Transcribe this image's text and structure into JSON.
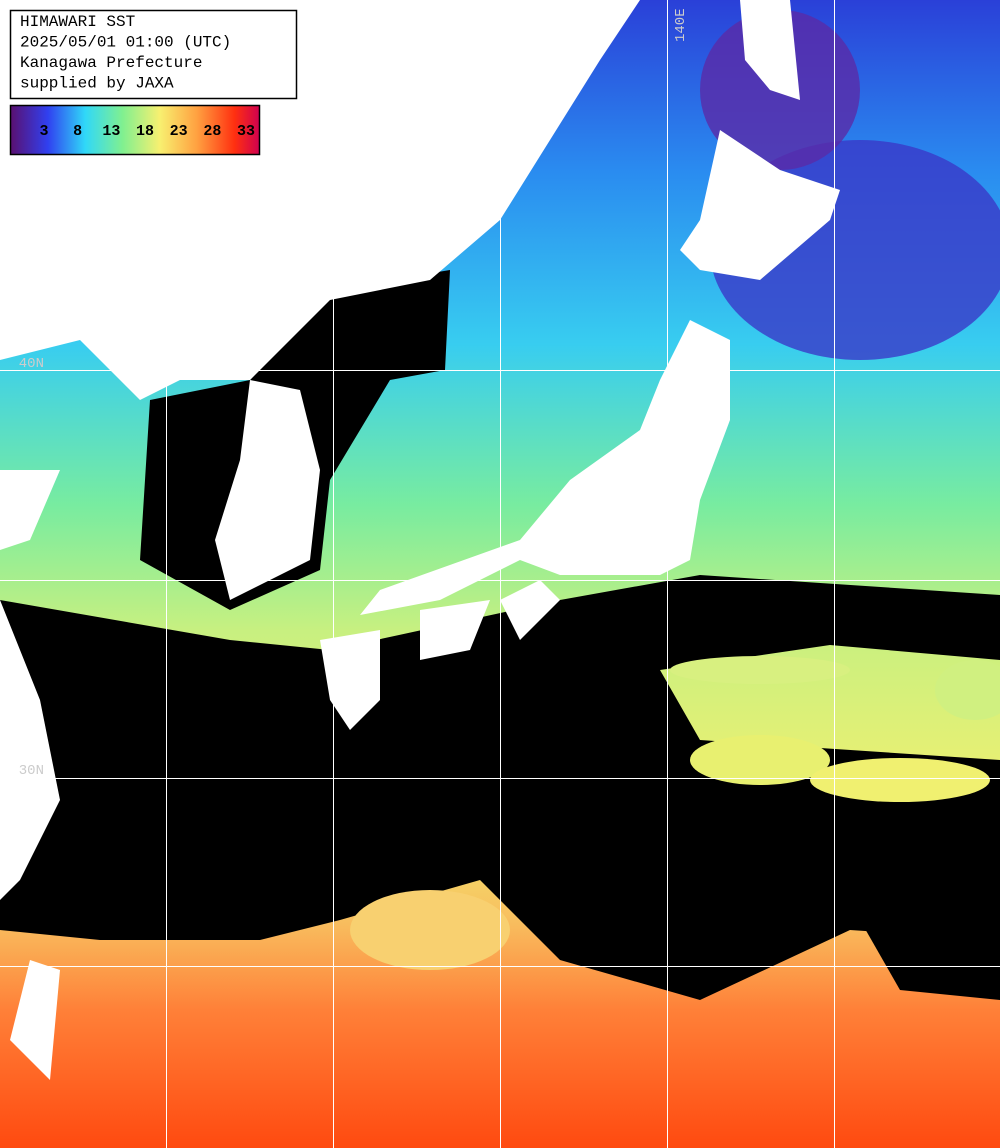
{
  "header": {
    "lines": [
      "HIMAWARI SST",
      "2025/05/01 01:00 (UTC)",
      "Kanagawa Prefecture",
      "supplied by JAXA"
    ]
  },
  "colorbar": {
    "labels": [
      3,
      8,
      13,
      18,
      23,
      28,
      33
    ]
  },
  "grid_labels": {
    "longitude": [
      "140E"
    ],
    "latitude": [
      "40N",
      "30N"
    ]
  }
}
